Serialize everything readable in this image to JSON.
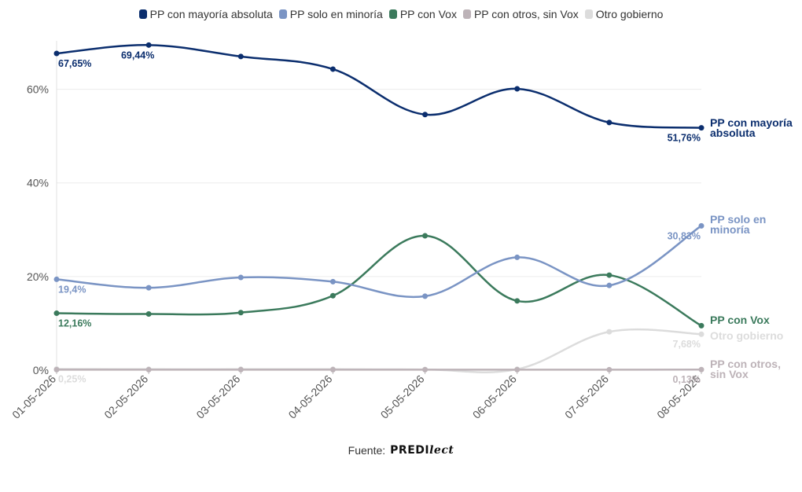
{
  "chart_data": {
    "type": "line",
    "x": [
      "01-05-2026",
      "02-05-2026",
      "03-05-2026",
      "04-05-2026",
      "05-05-2026",
      "06-05-2026",
      "07-05-2026",
      "08-05-2026"
    ],
    "y_ticks": [
      "0%",
      "20%",
      "40%",
      "60%"
    ],
    "ylim": [
      0,
      70
    ],
    "grid": true,
    "legend_position": "top",
    "series": [
      {
        "name": "PP con mayoría absoluta",
        "end_label": [
          "PP con mayoría",
          "absoluta"
        ],
        "color": "#0b2e6e",
        "values": [
          67.65,
          69.44,
          67.0,
          64.3,
          54.6,
          60.1,
          52.9,
          51.76
        ],
        "data_labels": [
          {
            "i": 0,
            "text": "67,65%"
          },
          {
            "i": 1,
            "text": "69,44%"
          },
          {
            "i": 7,
            "text": "51,76%"
          }
        ]
      },
      {
        "name": "PP solo en minoría",
        "end_label": [
          "PP solo en",
          "minoría"
        ],
        "color": "#7a94c4",
        "values": [
          19.4,
          17.6,
          19.8,
          18.9,
          15.8,
          24.1,
          18.1,
          30.83
        ],
        "data_labels": [
          {
            "i": 0,
            "text": "19,4%"
          },
          {
            "i": 7,
            "text": "30,83%"
          }
        ]
      },
      {
        "name": "PP con Vox",
        "end_label": [
          "PP con Vox"
        ],
        "color": "#3b7a5c",
        "values": [
          12.16,
          12.0,
          12.3,
          15.9,
          28.7,
          14.8,
          20.3,
          9.5
        ],
        "data_labels": [
          {
            "i": 0,
            "text": "12,16%"
          }
        ]
      },
      {
        "name": "PP con otros, sin Vox",
        "end_label": [
          "PP con otros,",
          "sin Vox"
        ],
        "color": "#bdb3b8",
        "values": [
          0.1,
          0.1,
          0.1,
          0.1,
          0.1,
          0.1,
          0.1,
          0.13
        ],
        "data_labels": [
          {
            "i": 7,
            "text": "0,13%"
          }
        ]
      },
      {
        "name": "Otro gobierno",
        "end_label": [
          "Otro gobierno"
        ],
        "color": "#dcdcdc",
        "values": [
          0.25,
          0.2,
          0.2,
          0.2,
          0.15,
          0.2,
          8.2,
          7.68
        ],
        "data_labels": [
          {
            "i": 0,
            "text": "0,25%"
          },
          {
            "i": 7,
            "text": "7,68%"
          }
        ]
      }
    ]
  },
  "source": {
    "label": "Fuente:",
    "logo_bold": "PREDI",
    "logo_script": "lect"
  }
}
